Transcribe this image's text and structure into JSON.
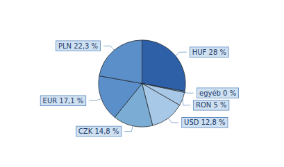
{
  "chart_data": {
    "type": "pie",
    "categories": [
      "HUF 28 %",
      "egyéb 0 %",
      "RON 5 %",
      "USD 12,8 %",
      "CZK 14,8 %",
      "EUR 17,1 %",
      "PLN 22,3 %"
    ],
    "values": [
      28,
      0.5,
      5,
      12.8,
      14.8,
      17.1,
      22.3
    ],
    "colors": [
      "#2e60a8",
      "#7badd4",
      "#a8c8e8",
      "#a8c8e8",
      "#7badd4",
      "#5b8fc9",
      "#5b8fc9"
    ]
  }
}
